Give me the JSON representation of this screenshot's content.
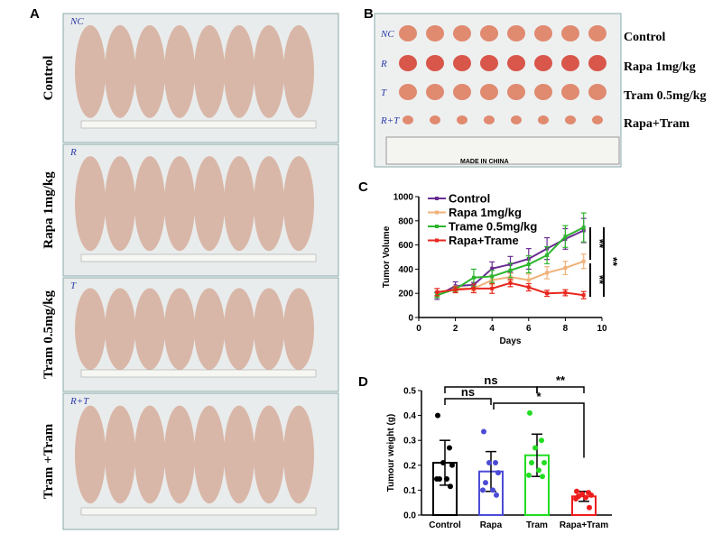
{
  "panels": {
    "a": "A",
    "b": "B",
    "c": "C",
    "d": "D"
  },
  "panel_a": {
    "labels": [
      "Control",
      "Rapa 1mg/kg",
      "Tram 0.5mg/kg",
      "Tram +Tram"
    ],
    "photo_marks": [
      "NC",
      "R",
      "T",
      "R+T"
    ]
  },
  "panel_b": {
    "labels": [
      "Control",
      "Rapa 1mg/kg",
      "Tram 0.5mg/kg",
      "Rapa+Tram"
    ],
    "photo_marks": [
      "NC",
      "R",
      "T",
      "R+T"
    ],
    "ruler_text": "MADE IN CHINA"
  },
  "chart_data": [
    {
      "type": "line",
      "xlabel": "Days",
      "ylabel": "Tumor Volume",
      "xlim": [
        0,
        10
      ],
      "ylim": [
        0,
        1000
      ],
      "xticks": [
        "0",
        "2",
        "4",
        "6",
        "8",
        "10"
      ],
      "yticks": [
        "0",
        "200",
        "400",
        "600",
        "800",
        "1000"
      ],
      "legend": "top-left",
      "x": [
        1,
        2,
        3,
        4,
        5,
        6,
        7,
        8,
        9
      ],
      "series": [
        {
          "name": "Control",
          "color": "#6a2c91",
          "values": [
            180,
            260,
            270,
            405,
            440,
            485,
            570,
            650,
            720
          ],
          "error": [
            30,
            35,
            20,
            55,
            65,
            85,
            90,
            85,
            100
          ]
        },
        {
          "name": "Rapa 1mg/kg",
          "color": "#f0b27a",
          "values": [
            185,
            240,
            240,
            310,
            335,
            310,
            370,
            410,
            465
          ],
          "error": [
            20,
            20,
            20,
            40,
            30,
            50,
            50,
            55,
            60
          ]
        },
        {
          "name": "Trame 0.5mg/kg",
          "color": "#2db52d",
          "values": [
            185,
            235,
            330,
            340,
            390,
            440,
            515,
            670,
            745
          ],
          "error": [
            20,
            20,
            70,
            50,
            60,
            70,
            70,
            90,
            120
          ]
        },
        {
          "name": "Rapa+Trame",
          "color": "#e8271e",
          "values": [
            210,
            230,
            240,
            240,
            285,
            250,
            200,
            205,
            185
          ],
          "error": [
            30,
            25,
            35,
            40,
            30,
            30,
            25,
            25,
            30
          ]
        }
      ],
      "annotations": [
        "**",
        "**"
      ]
    },
    {
      "type": "bar",
      "ylabel": "Tumour weight (g)",
      "ylim": [
        0,
        0.5
      ],
      "yticks": [
        "0.0",
        "0.1",
        "0.2",
        "0.3",
        "0.4",
        "0.5"
      ],
      "categories": [
        "Control",
        "Rapa",
        "Tram",
        "Rapa+Tram"
      ],
      "colors": [
        "#000000",
        "#4b4bd6",
        "#22dd22",
        "#ee1c1c"
      ],
      "values": [
        0.21,
        0.175,
        0.24,
        0.075
      ],
      "error": [
        0.09,
        0.08,
        0.085,
        0.02
      ],
      "points": [
        [
          0.4,
          0.27,
          0.21,
          0.2,
          0.145,
          0.145,
          0.145,
          0.115
        ],
        [
          0.335,
          0.21,
          0.21,
          0.17,
          0.13,
          0.1,
          0.1,
          0.08
        ],
        [
          0.41,
          0.3,
          0.27,
          0.21,
          0.21,
          0.18,
          0.16,
          0.155
        ],
        [
          0.095,
          0.09,
          0.085,
          0.08,
          0.075,
          0.07,
          0.065,
          0.03
        ]
      ],
      "significance": [
        {
          "from": 0,
          "to": 2,
          "label": "ns"
        },
        {
          "from": 0,
          "to": 1,
          "label": "ns"
        },
        {
          "from": 1,
          "to": 3,
          "label": "*"
        },
        {
          "from": 2,
          "to": 3,
          "label": "**"
        }
      ]
    }
  ]
}
